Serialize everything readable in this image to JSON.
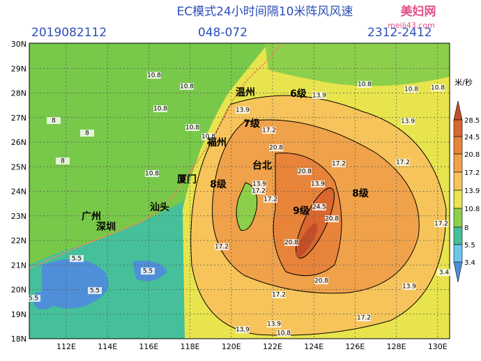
{
  "header": {
    "title": "EC模式24小时间隔10米阵风风速",
    "date": "2019082112",
    "forecast": "048-072",
    "period": "2312-2412",
    "watermark": "美妇网",
    "watermark_url": "meili43.com"
  },
  "axes": {
    "lat_labels": [
      "30N",
      "29N",
      "28N",
      "27N",
      "26N",
      "25N",
      "24N",
      "23N",
      "22N",
      "21N",
      "20N",
      "19N",
      "18N"
    ],
    "lon_labels": [
      "112E",
      "114E",
      "116E",
      "118E",
      "120E",
      "122E",
      "124E",
      "126E",
      "128E",
      "130E"
    ]
  },
  "legend": {
    "unit": "米/秒",
    "labels": [
      "28.5",
      "24.5",
      "20.8",
      "17.2",
      "13.9",
      "10.8",
      "8",
      "5.5",
      "3.4"
    ],
    "colors": [
      "#c24e2a",
      "#d9672e",
      "#e8843a",
      "#f0a24a",
      "#f6c45a",
      "#e8e44e",
      "#8ccf4a",
      "#45c09a",
      "#6cc8ea",
      "#4f8fd8"
    ]
  },
  "cities": [
    "温州",
    "福州",
    "台北",
    "厦门",
    "汕头",
    "广州",
    "深圳"
  ],
  "levels": [
    "6级",
    "7级",
    "8级",
    "9级",
    "8级"
  ],
  "contour_labels": [
    "10.8",
    "10.8",
    "10.8",
    "8",
    "10.8",
    "8",
    "8",
    "10.8",
    "10.8",
    "13.9",
    "17.2",
    "20.8",
    "13.9",
    "10.8",
    "10.8",
    "10.8",
    "13.9",
    "17.2",
    "17.2",
    "20.8",
    "13.9",
    "24.5",
    "20.8",
    "20.8",
    "17.2",
    "17.2",
    "20.8",
    "17.2",
    "13.9",
    "17.2",
    "13.9",
    "13.9",
    "10.8",
    "5.5",
    "5.5",
    "5.5",
    "5.5",
    "3.4",
    "17.2",
    "13.9",
    "17.2"
  ]
}
